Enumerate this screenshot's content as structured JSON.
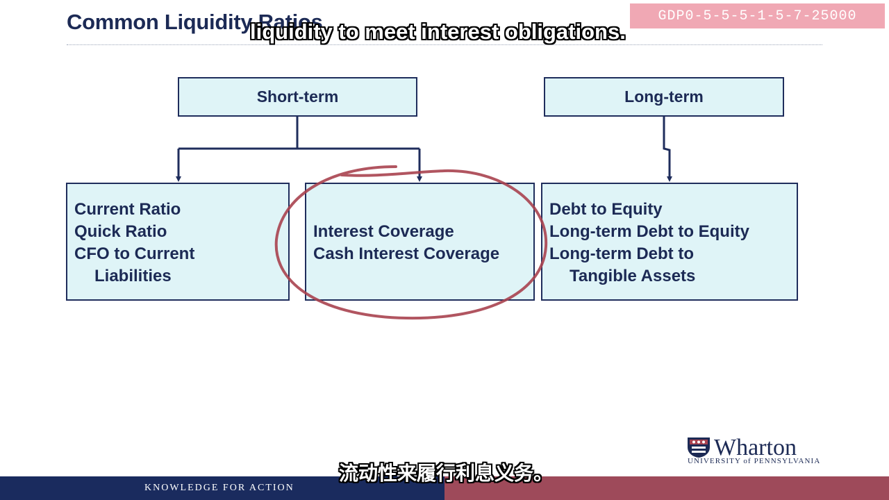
{
  "slide": {
    "title": "Common Liquidity Ratios"
  },
  "captions": {
    "english": "liquidity to meet interest obligations.",
    "chinese": "流动性来履行利息义务。"
  },
  "watermark": {
    "text": "GDP0-5-5-5-1-5-7-25000"
  },
  "diagram": {
    "categories": {
      "short_term": "Short-term",
      "long_term": "Long-term"
    },
    "groups": {
      "short_term_liquidity": [
        "Current Ratio",
        "Quick Ratio",
        "CFO to Current",
        "Liabilities"
      ],
      "interest_coverage": [
        "Interest Coverage",
        "Cash Interest Coverage"
      ],
      "long_term_solvency": [
        "Debt to Equity",
        "Long-term Debt to Equity",
        "Long-term Debt to",
        "Tangible Assets"
      ]
    },
    "highlight": {
      "shape": "hand-drawn circle",
      "color": "#a8424f",
      "target": "interest_coverage"
    }
  },
  "footer": {
    "tagline": "KNOWLEDGE FOR ACTION",
    "left_color": "#1a2b5e",
    "right_color": "#9e4a5a"
  },
  "logo": {
    "name": "Wharton",
    "subtitle": "UNIVERSITY of PENNSYLVANIA",
    "icon": "university-shield-icon"
  }
}
